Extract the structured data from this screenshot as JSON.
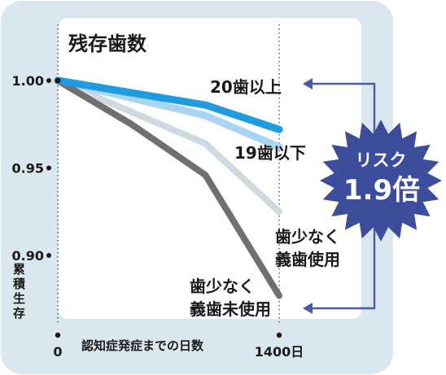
{
  "chart_data": {
    "type": "line",
    "title": "残存歯数",
    "ylabel": "累積生存",
    "xlabel": "認知症発症までの日数",
    "x_start_label": "0",
    "x_end_label": "1400日",
    "x": [
      0,
      466,
      933,
      1400
    ],
    "ylim": [
      0.9,
      1.0
    ],
    "yticks": [
      {
        "value": 1.0,
        "label": "1.00"
      },
      {
        "value": 0.95,
        "label": "0.95"
      },
      {
        "value": 0.9,
        "label": "0.90"
      }
    ],
    "series": [
      {
        "name": "20歯以上",
        "color": "#1f9be0",
        "values": [
          1.0,
          0.993,
          0.986,
          0.972
        ]
      },
      {
        "name": "19歯以下",
        "color": "#a9d4f2",
        "values": [
          1.0,
          0.99,
          0.98,
          0.962
        ]
      },
      {
        "name": "歯少なく義歯使用",
        "color": "#cfd9df",
        "values": [
          1.0,
          0.982,
          0.964,
          0.925
        ]
      },
      {
        "name": "歯少なく義歯未使用",
        "color": "#707070",
        "values": [
          1.0,
          0.975,
          0.946,
          0.877
        ]
      }
    ],
    "annotation": {
      "line1": "リスク",
      "line2": "1.9倍"
    }
  },
  "labels": {
    "s1": "20歯以上",
    "s2": "19歯以下",
    "s3a": "歯少なく",
    "s3b": "義歯使用",
    "s4a": "歯少なく",
    "s4b": "義歯未使用"
  },
  "colors": {
    "outer_bg": "#dbe7ef",
    "plot_bg": "#ffffff",
    "badge": "#3c4d9c",
    "arrow": "#4b5aa8"
  }
}
